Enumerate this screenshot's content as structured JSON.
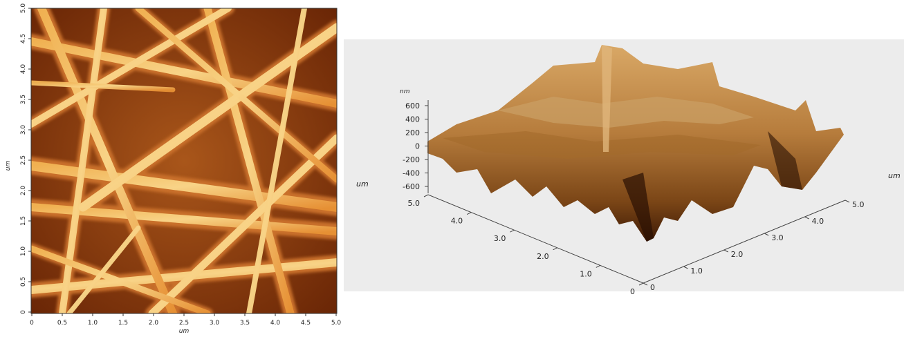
{
  "height_map": {
    "x_axis_label": "um",
    "y_axis_label": "um",
    "x_ticks": [
      "0",
      "0.5",
      "1.0",
      "1.5",
      "2.0",
      "2.5",
      "3.0",
      "3.5",
      "4.0",
      "4.5",
      "5.0"
    ],
    "y_ticks": [
      "0",
      "0.5",
      "1.0",
      "1.5",
      "2.0",
      "2.5",
      "3.0",
      "3.5",
      "4.0",
      "4.5",
      "5.0"
    ]
  },
  "surface_3d": {
    "z_unit": "nm",
    "z_ticks": [
      "600",
      "400",
      "200",
      "0",
      "-200",
      "-400",
      "-600"
    ],
    "y_axis_label": "um",
    "y_ticks": [
      "5.0",
      "4.0",
      "3.0",
      "2.0",
      "1.0",
      "0"
    ],
    "x_axis_label": "um",
    "x_ticks": [
      "0",
      "1.0",
      "2.0",
      "3.0",
      "4.0",
      "5.0"
    ]
  }
}
